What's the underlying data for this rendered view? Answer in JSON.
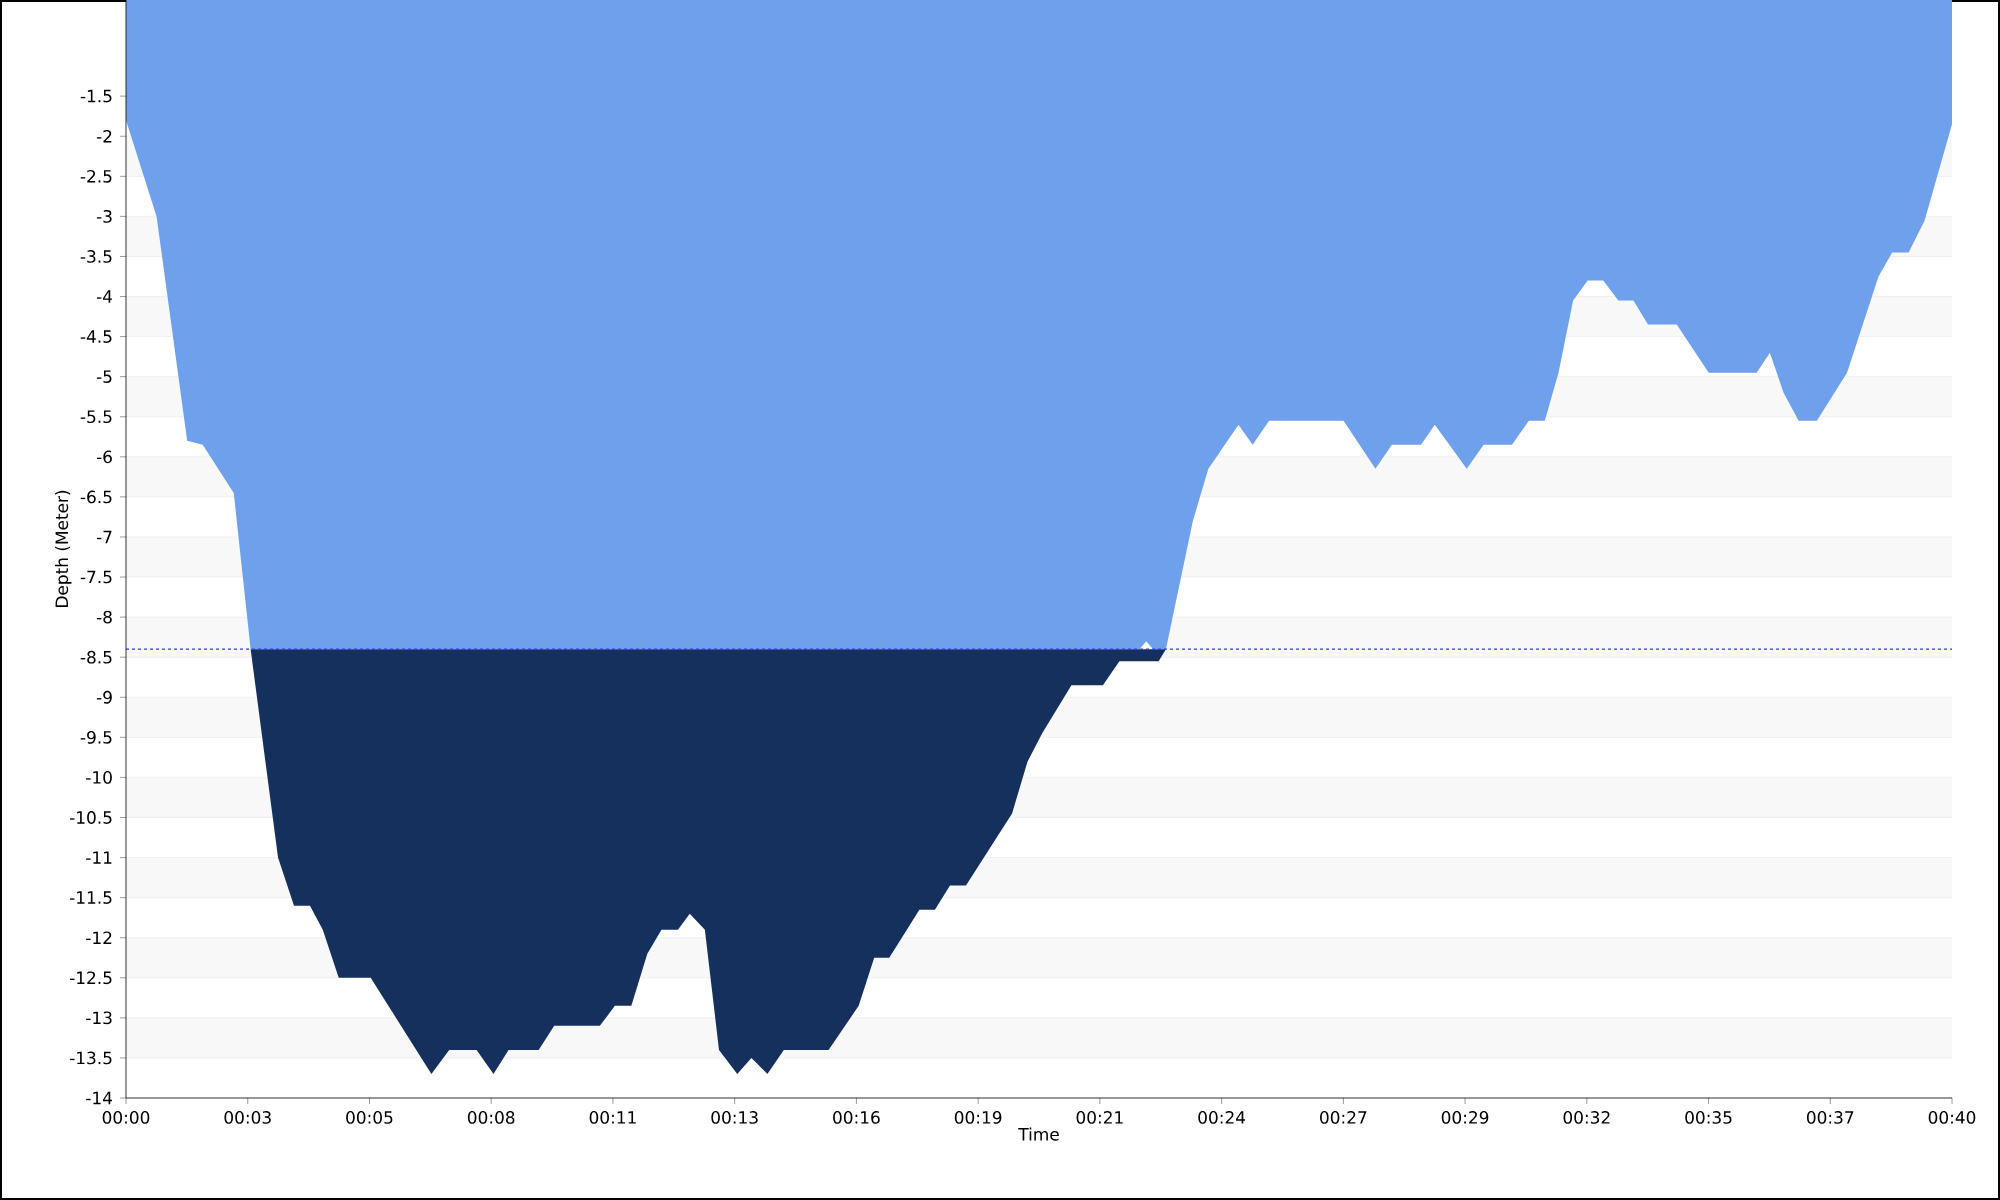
{
  "chart_data": {
    "type": "area",
    "xlabel": "Time",
    "ylabel": "Depth (Meter)",
    "xlim": [
      0,
      40
    ],
    "ylim": [
      -14,
      -0.3
    ],
    "xticks": [
      {
        "value": 0,
        "label": "00:00"
      },
      {
        "value": 2.667,
        "label": "00:03"
      },
      {
        "value": 5.333,
        "label": "00:05"
      },
      {
        "value": 8,
        "label": "00:08"
      },
      {
        "value": 10.667,
        "label": "00:11"
      },
      {
        "value": 13.333,
        "label": "00:13"
      },
      {
        "value": 16,
        "label": "00:16"
      },
      {
        "value": 18.667,
        "label": "00:19"
      },
      {
        "value": 21.333,
        "label": "00:21"
      },
      {
        "value": 24,
        "label": "00:24"
      },
      {
        "value": 26.667,
        "label": "00:27"
      },
      {
        "value": 29.333,
        "label": "00:29"
      },
      {
        "value": 32,
        "label": "00:32"
      },
      {
        "value": 34.667,
        "label": "00:35"
      },
      {
        "value": 37.333,
        "label": "00:37"
      },
      {
        "value": 40,
        "label": "00:40"
      }
    ],
    "yticks": [
      -1.5,
      -2,
      -2.5,
      -3,
      -3.5,
      -4,
      -4.5,
      -5,
      -5.5,
      -6,
      -6.5,
      -7,
      -7.5,
      -8,
      -8.5,
      -9,
      -9.5,
      -10,
      -10.5,
      -11,
      -11.5,
      -12,
      -12.5,
      -13,
      -13.5,
      -14
    ],
    "grid": "y",
    "ref_lines": [
      {
        "axis": "y",
        "value": -8.4,
        "color": "#3333ff",
        "line_style": "dotted"
      }
    ],
    "series": [
      {
        "color": "#6fa0eb",
        "x": [
          0,
          0.67,
          1.34,
          1.68,
          2.36,
          2.73,
          22.2,
          22.35,
          22.5,
          22.78,
          23.37,
          23.71,
          24.37,
          24.68,
          25.04,
          26.67,
          27.37,
          27.73,
          28.37,
          28.67,
          29.37,
          29.74,
          30.36,
          30.73,
          31.08,
          31.38,
          31.7,
          32.02,
          32.36,
          32.69,
          33.02,
          33.34,
          33.97,
          34.67,
          35.72,
          36.01,
          36.31,
          36.64,
          37.04,
          37.7,
          38.39,
          38.69,
          39.05,
          39.4,
          40
        ],
        "values": [
          -1.8,
          -3.0,
          -5.8,
          -5.85,
          -6.45,
          -8.4,
          -8.4,
          -8.3,
          -8.4,
          -8.4,
          -6.8,
          -6.15,
          -5.6,
          -5.85,
          -5.55,
          -5.55,
          -6.15,
          -5.85,
          -5.85,
          -5.6,
          -6.15,
          -5.85,
          -5.85,
          -5.55,
          -5.55,
          -4.95,
          -4.05,
          -3.8,
          -3.8,
          -4.05,
          -4.05,
          -4.35,
          -4.35,
          -4.95,
          -4.95,
          -4.7,
          -5.2,
          -5.55,
          -5.55,
          -4.95,
          -3.75,
          -3.45,
          -3.45,
          -3.05,
          -1.85
        ]
      },
      {
        "color": "#16305e",
        "x": [
          2.73,
          3.33,
          3.68,
          4.03,
          4.31,
          4.66,
          5.36,
          6.69,
          7.08,
          7.68,
          8.05,
          8.38,
          9.04,
          9.38,
          10.38,
          10.71,
          11.07,
          11.42,
          11.73,
          12.09,
          12.35,
          12.68,
          12.99,
          13.39,
          13.7,
          14.05,
          14.41,
          15.39,
          16.05,
          16.39,
          16.72,
          17.38,
          17.72,
          18.05,
          18.4,
          19.41,
          19.75,
          20.07,
          20.71,
          21.4,
          21.76,
          22.12,
          22.62,
          22.78
        ],
        "values": [
          -8.4,
          -11.0,
          -11.6,
          -11.6,
          -11.9,
          -12.5,
          -12.5,
          -13.7,
          -13.4,
          -13.4,
          -13.7,
          -13.4,
          -13.4,
          -13.1,
          -13.1,
          -12.85,
          -12.85,
          -12.2,
          -11.9,
          -11.9,
          -11.7,
          -11.9,
          -13.4,
          -13.7,
          -13.5,
          -13.7,
          -13.4,
          -13.4,
          -12.85,
          -12.25,
          -12.25,
          -11.65,
          -11.65,
          -11.35,
          -11.35,
          -10.45,
          -9.8,
          -9.45,
          -8.85,
          -8.85,
          -8.55,
          -8.55,
          -8.55,
          -8.4
        ]
      }
    ]
  }
}
